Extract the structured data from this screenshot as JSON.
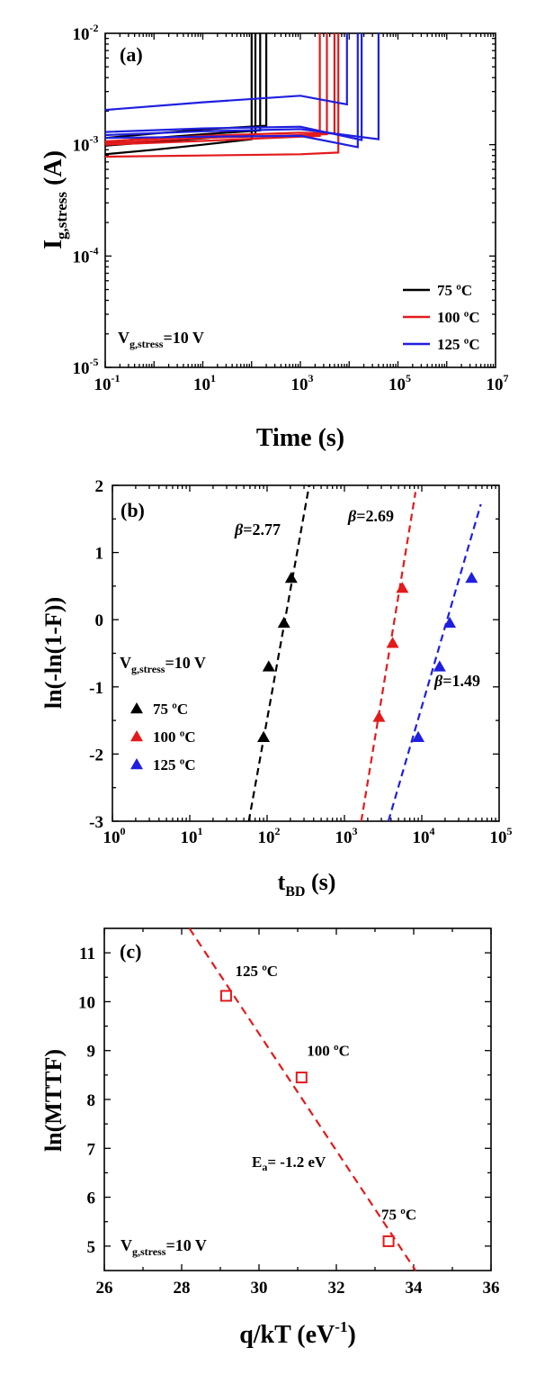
{
  "chart_data": [
    {
      "type": "line",
      "panel_label": "(a)",
      "xscale": "log",
      "yscale": "log",
      "xlim": [
        0.1,
        10000000
      ],
      "ylim": [
        1e-05,
        0.01
      ],
      "x_ticks": [
        {
          "b": "10",
          "e": "-1"
        },
        {
          "b": "10",
          "e": "1"
        },
        {
          "b": "10",
          "e": "3"
        },
        {
          "b": "10",
          "e": "5"
        },
        {
          "b": "10",
          "e": "7"
        }
      ],
      "y_ticks": [
        {
          "b": "10",
          "e": "-5"
        },
        {
          "b": "10",
          "e": "-4"
        },
        {
          "b": "10",
          "e": "-3"
        },
        {
          "b": "10",
          "e": "-2"
        }
      ],
      "xlabel": "Time (s)",
      "ylabel": {
        "main": "I",
        "sub": "g,stress",
        "tail": " (A)"
      },
      "annotation": {
        "main": "V",
        "sub": "g,stress",
        "tail": "=10 V"
      },
      "legend": {
        "placement": "bottom-right",
        "entries": [
          {
            "name": "75 ºC",
            "color": "#000000"
          },
          {
            "name": "100 ºC",
            "color": "#e31a1c"
          },
          {
            "name": "125 ºC",
            "color": "#1f1fe0"
          }
        ]
      },
      "series": [
        {
          "name": "75 ºC",
          "color": "#000000",
          "curves": [
            {
              "x": [
                0.1,
                1,
                10,
                100
              ],
              "y": [
                0.00082,
                0.0009,
                0.001,
                0.00112
              ],
              "t_break": 100
            },
            {
              "x": [
                0.1,
                1,
                10,
                120
              ],
              "y": [
                0.00098,
                0.00106,
                0.00114,
                0.00124
              ],
              "t_break": 120
            },
            {
              "x": [
                0.1,
                1,
                10,
                150
              ],
              "y": [
                0.00106,
                0.00115,
                0.00124,
                0.00134
              ],
              "t_break": 150
            },
            {
              "x": [
                0.1,
                1,
                10,
                200
              ],
              "y": [
                0.00115,
                0.00126,
                0.00137,
                0.00148
              ],
              "t_break": 200
            }
          ]
        },
        {
          "name": "100 ºC",
          "color": "#e31a1c",
          "curves": [
            {
              "x": [
                0.1,
                10,
                1000,
                6000
              ],
              "y": [
                0.00078,
                0.0008,
                0.00082,
                0.00085
              ],
              "t_break": 6000
            },
            {
              "x": [
                0.1,
                10,
                1000,
                2500
              ],
              "y": [
                0.001,
                0.00108,
                0.00118,
                0.0012
              ],
              "t_break": 2500
            },
            {
              "x": [
                0.1,
                10,
                1000,
                3500
              ],
              "y": [
                0.00103,
                0.00115,
                0.00122,
                0.00124
              ],
              "t_break": 3500
            },
            {
              "x": [
                0.1,
                10,
                1000,
                5000
              ],
              "y": [
                0.00107,
                0.0012,
                0.00128,
                0.00126
              ],
              "t_break": 5000
            }
          ]
        },
        {
          "name": "125 ºC",
          "color": "#1f1fe0",
          "curves": [
            {
              "x": [
                0.1,
                10,
                1000,
                9000
              ],
              "y": [
                0.00205,
                0.0024,
                0.00275,
                0.0023
              ],
              "t_break": 9000
            },
            {
              "x": [
                0.1,
                10,
                1000,
                18000
              ],
              "y": [
                0.0013,
                0.0014,
                0.00145,
                0.0011
              ],
              "t_break": 18000
            },
            {
              "x": [
                0.1,
                10,
                1000,
                40000
              ],
              "y": [
                0.00122,
                0.00132,
                0.00138,
                0.00112
              ],
              "t_break": 40000
            },
            {
              "x": [
                0.1,
                10,
                1000,
                15000
              ],
              "y": [
                0.00115,
                0.00118,
                0.0012,
                0.00095
              ],
              "t_break": 15000
            }
          ]
        }
      ]
    },
    {
      "type": "scatter",
      "panel_label": "(b)",
      "xscale": "log",
      "xlim": [
        1,
        100000
      ],
      "ylim": [
        -3,
        2
      ],
      "x_ticks": [
        {
          "b": "10",
          "e": "0"
        },
        {
          "b": "10",
          "e": "1"
        },
        {
          "b": "10",
          "e": "2"
        },
        {
          "b": "10",
          "e": "3"
        },
        {
          "b": "10",
          "e": "4"
        },
        {
          "b": "10",
          "e": "5"
        }
      ],
      "y_ticks": [
        "-3",
        "-2",
        "-1",
        "0",
        "1",
        "2"
      ],
      "xlabel": {
        "main": "t",
        "sub": "BD",
        "tail": " (s)"
      },
      "ylabel": "ln(-ln(1-F))",
      "annotation": {
        "main": "V",
        "sub": "g,stress",
        "tail": "=10 V"
      },
      "legend": {
        "placement": "bottom-left",
        "entries": [
          {
            "name": "75 ºC",
            "color": "#000000"
          },
          {
            "name": "100 ºC",
            "color": "#e31a1c"
          },
          {
            "name": "125 ºC",
            "color": "#1f1fe0"
          }
        ]
      },
      "series": [
        {
          "name": "75 ºC",
          "color": "#000000",
          "x": [
            90,
            105,
            165,
            205
          ],
          "y": [
            -1.75,
            -0.7,
            -0.05,
            0.62
          ],
          "fit": {
            "x": [
              58,
              350
            ],
            "y": [
              -3,
              2
            ]
          },
          "beta_label": {
            "symbol": "β",
            "value": "=2.77"
          }
        },
        {
          "name": "100 ºC",
          "color": "#e31a1c",
          "x": [
            2800,
            4200,
            5600
          ],
          "y": [
            -1.45,
            -0.35,
            0.47
          ],
          "fit": {
            "x": [
              1650,
              8300
            ],
            "y": [
              -3,
              1.9
            ]
          },
          "beta_label": {
            "symbol": "β",
            "value": "=2.69"
          }
        },
        {
          "name": "125 ºC",
          "color": "#1f1fe0",
          "x": [
            9000,
            17000,
            23000,
            44000
          ],
          "y": [
            -1.75,
            -0.7,
            -0.05,
            0.62
          ],
          "fit": {
            "x": [
              3700,
              58000
            ],
            "y": [
              -3,
              1.72
            ]
          },
          "beta_label": {
            "symbol": "β",
            "value": "=1.49"
          }
        }
      ]
    },
    {
      "type": "scatter",
      "panel_label": "(c)",
      "xlim": [
        26,
        36
      ],
      "ylim": [
        4.5,
        11.5
      ],
      "x_ticks": [
        "26",
        "28",
        "30",
        "32",
        "34",
        "36"
      ],
      "y_ticks": [
        "5",
        "6",
        "7",
        "8",
        "9",
        "10",
        "11"
      ],
      "xlabel": {
        "main": "q/kT (eV",
        "sup": "-1",
        "tail": ")"
      },
      "ylabel": "ln(MTTF)",
      "annotation": {
        "main": "V",
        "sub": "g,stress",
        "tail": "=10 V"
      },
      "ea_label": {
        "main": "E",
        "sub": "a",
        "tail": "= -1.2 eV"
      },
      "points": [
        {
          "label": "125 ºC",
          "x": 29.15,
          "y": 10.12
        },
        {
          "label": "100 ºC",
          "x": 31.1,
          "y": 8.45
        },
        {
          "label": "75 ºC",
          "x": 33.35,
          "y": 5.1
        }
      ],
      "fit": {
        "x": [
          28.2,
          34.05
        ],
        "y": [
          11.5,
          4.5
        ]
      },
      "color": "#e31a1c"
    }
  ]
}
